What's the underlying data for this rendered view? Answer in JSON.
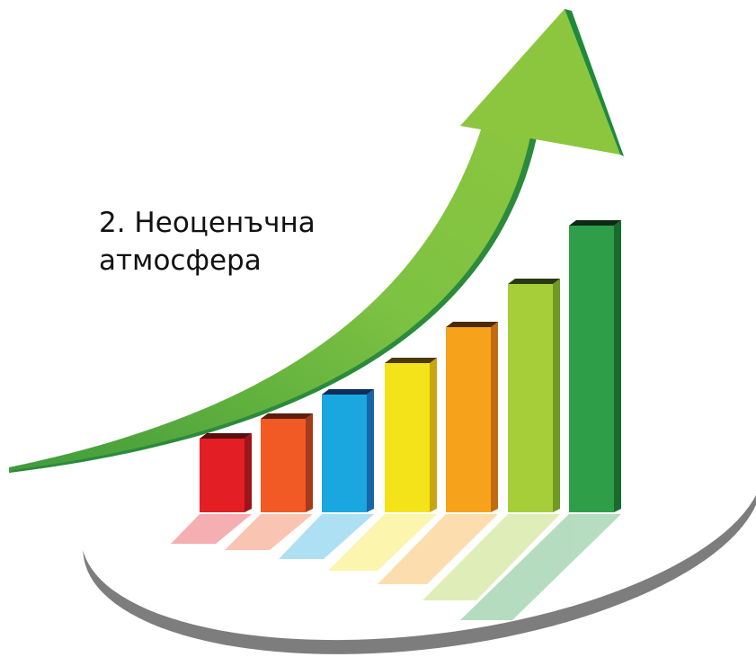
{
  "caption": {
    "lines": [
      "2. Неоценъчна",
      "атмосфера"
    ]
  }
}
